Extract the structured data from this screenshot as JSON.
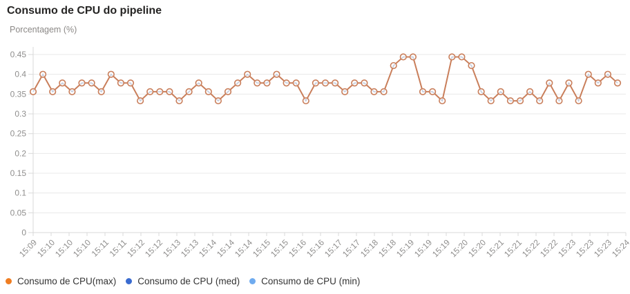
{
  "header": {
    "title": "Consumo de CPU do pipeline",
    "subtitle": "Porcentagem (%)"
  },
  "chart_data": {
    "type": "line",
    "title": "Consumo de CPU do pipeline",
    "ylabel": "Porcentagem (%)",
    "ylim": [
      0,
      0.45
    ],
    "grid": true,
    "legend_position": "bottom",
    "marker": "open-circle",
    "y_tick_labels": [
      "0.45",
      "0.4",
      "0.35",
      "0.3",
      "0.25",
      "0.2",
      "0.15",
      "0.1",
      "0.05",
      "0"
    ],
    "y_tick_values": [
      0.45,
      0.4,
      0.35,
      0.3,
      0.25,
      0.2,
      0.15,
      0.1,
      0.05,
      0
    ],
    "x_tick_labels": [
      "15:09",
      "15:10",
      "15:10",
      "15:10",
      "15:11",
      "15:11",
      "15:12",
      "15:12",
      "15:13",
      "15:13",
      "15:14",
      "15:14",
      "15:14",
      "15:15",
      "15:15",
      "15:16",
      "15:16",
      "15:17",
      "15:17",
      "15:18",
      "15:18",
      "15:19",
      "15:19",
      "15:19",
      "15:20",
      "15:20",
      "15:21",
      "15:21",
      "15:22",
      "15:22",
      "15:23",
      "15:23",
      "15:23",
      "15:24"
    ],
    "series": [
      {
        "name": "Consumo de CPU(max)",
        "legend_color": "#ef7d22",
        "line_color": "#c97e5a",
        "values": [
          0.356,
          0.4,
          0.356,
          0.378,
          0.356,
          0.378,
          0.378,
          0.356,
          0.4,
          0.378,
          0.378,
          0.333,
          0.356,
          0.356,
          0.356,
          0.333,
          0.356,
          0.378,
          0.356,
          0.333,
          0.356,
          0.378,
          0.4,
          0.378,
          0.378,
          0.4,
          0.378,
          0.378,
          0.333,
          0.378,
          0.378,
          0.378,
          0.356,
          0.378,
          0.378,
          0.356,
          0.356,
          0.422,
          0.444,
          0.444,
          0.356,
          0.356,
          0.333,
          0.444,
          0.444,
          0.422,
          0.356,
          0.333,
          0.356,
          0.333,
          0.333,
          0.356,
          0.333,
          0.378,
          0.333,
          0.378,
          0.333,
          0.4,
          0.378,
          0.4,
          0.378
        ]
      },
      {
        "name": "Consumo de CPU (med)",
        "legend_color": "#3a6bd0",
        "line_color": "#3a6bd0",
        "overlaps_max_series": true,
        "values": [
          0.356,
          0.4,
          0.356,
          0.378,
          0.356,
          0.378,
          0.378,
          0.356,
          0.4,
          0.378,
          0.378,
          0.333,
          0.356,
          0.356,
          0.356,
          0.333,
          0.356,
          0.378,
          0.356,
          0.333,
          0.356,
          0.378,
          0.4,
          0.378,
          0.378,
          0.4,
          0.378,
          0.378,
          0.333,
          0.378,
          0.378,
          0.378,
          0.356,
          0.378,
          0.378,
          0.356,
          0.356,
          0.422,
          0.444,
          0.444,
          0.356,
          0.356,
          0.333,
          0.444,
          0.444,
          0.422,
          0.356,
          0.333,
          0.356,
          0.333,
          0.333,
          0.356,
          0.333,
          0.378,
          0.333,
          0.378,
          0.333,
          0.4,
          0.378,
          0.4,
          0.378
        ]
      },
      {
        "name": "Consumo de CPU (min)",
        "legend_color": "#6fabef",
        "line_color": "#6fabef",
        "overlaps_max_series": true,
        "values": [
          0.356,
          0.4,
          0.356,
          0.378,
          0.356,
          0.378,
          0.378,
          0.356,
          0.4,
          0.378,
          0.378,
          0.333,
          0.356,
          0.356,
          0.356,
          0.333,
          0.356,
          0.378,
          0.356,
          0.333,
          0.356,
          0.378,
          0.4,
          0.378,
          0.378,
          0.4,
          0.378,
          0.378,
          0.333,
          0.378,
          0.378,
          0.378,
          0.356,
          0.378,
          0.378,
          0.356,
          0.356,
          0.422,
          0.444,
          0.444,
          0.356,
          0.356,
          0.333,
          0.444,
          0.444,
          0.422,
          0.356,
          0.333,
          0.356,
          0.333,
          0.333,
          0.356,
          0.333,
          0.378,
          0.333,
          0.378,
          0.333,
          0.4,
          0.378,
          0.4,
          0.378
        ]
      }
    ]
  }
}
